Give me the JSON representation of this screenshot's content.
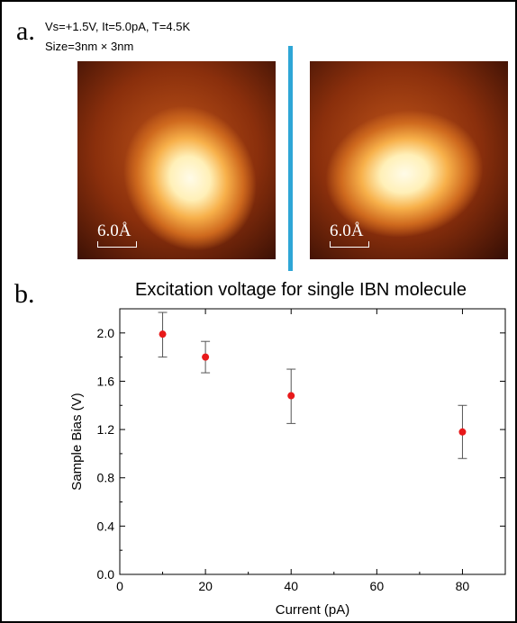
{
  "panel_a": {
    "label": "a.",
    "conditions_line1": "Vs=+1.5V, It=5.0pA, T=4.5K",
    "conditions_line2": "Size=3nm × 3nm",
    "left_image_scale": "6.0Å",
    "right_image_scale": "6.0Å",
    "divider_color": "#2ea6d6"
  },
  "panel_b": {
    "label": "b."
  },
  "chart_data": {
    "type": "scatter",
    "title": "Excitation voltage for single IBN molecule",
    "xlabel": "Current (pA)",
    "ylabel": "Sample Bias (V)",
    "xlim": [
      0,
      90
    ],
    "ylim": [
      0,
      2.2
    ],
    "xticks": [
      0,
      20,
      40,
      60,
      80
    ],
    "yticks": [
      "0.0",
      "0.4",
      "0.8",
      "1.2",
      "1.6",
      "2.0"
    ],
    "grid": false,
    "marker_color": "#e8191a",
    "errorbar_color": "#555555",
    "points": [
      {
        "x": 10,
        "y": 1.99,
        "err_low": 1.8,
        "err_high": 2.17
      },
      {
        "x": 20,
        "y": 1.8,
        "err_low": 1.67,
        "err_high": 1.93
      },
      {
        "x": 40,
        "y": 1.48,
        "err_low": 1.25,
        "err_high": 1.7
      },
      {
        "x": 80,
        "y": 1.18,
        "err_low": 0.96,
        "err_high": 1.4
      }
    ]
  }
}
